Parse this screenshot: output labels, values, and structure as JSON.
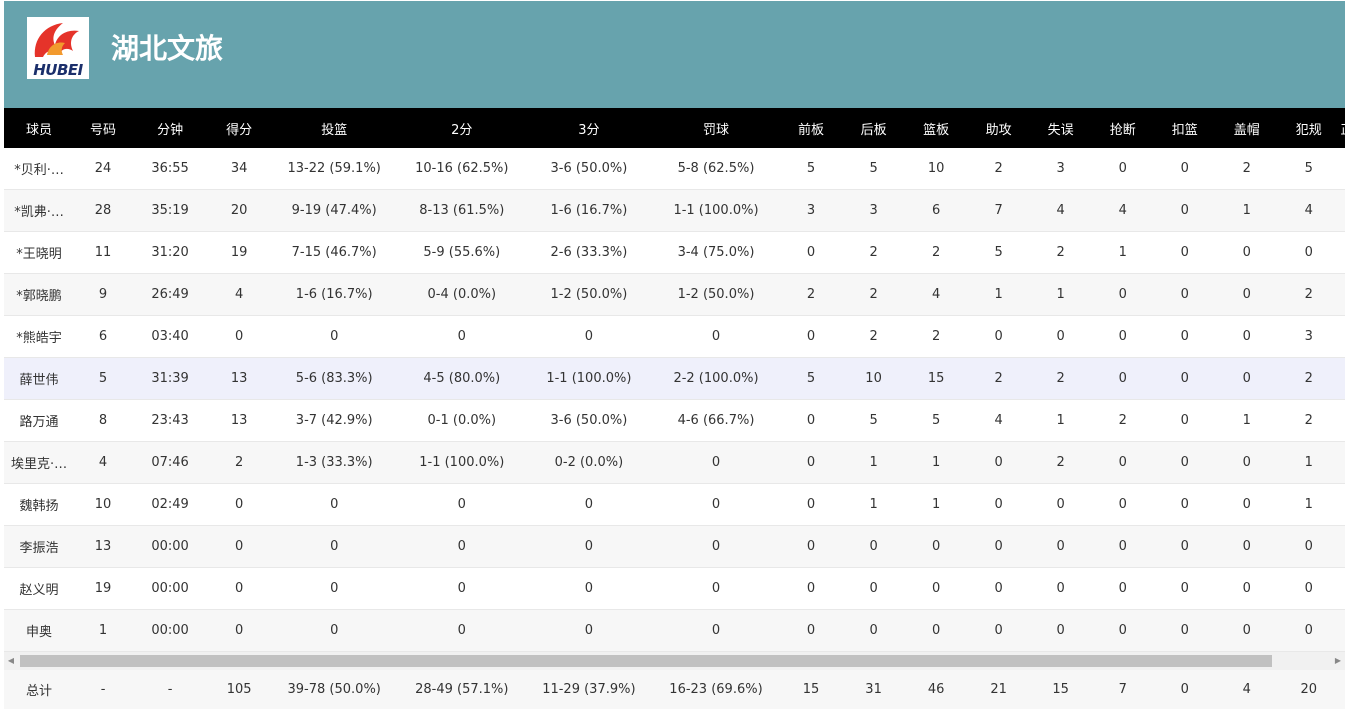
{
  "header": {
    "logo_text": "HUBEI",
    "team_name": "湖北文旅",
    "colors": {
      "banner": "#67a3ad",
      "logo_red": "#e5332a",
      "logo_blue": "#1b2f6b"
    }
  },
  "columns": [
    "球员",
    "号码",
    "分钟",
    "得分",
    "投篮",
    "2分",
    "3分",
    "罚球",
    "前板",
    "后板",
    "篮板",
    "助攻",
    "失误",
    "抢断",
    "扣篮",
    "盖帽",
    "犯规",
    "正"
  ],
  "rows": [
    [
      "*贝利·…",
      "24",
      "36:55",
      "34",
      "13-22 (59.1%)",
      "10-16 (62.5%)",
      "3-6 (50.0%)",
      "5-8 (62.5%)",
      "5",
      "5",
      "10",
      "2",
      "3",
      "0",
      "0",
      "2",
      "5",
      ""
    ],
    [
      "*凯弗·…",
      "28",
      "35:19",
      "20",
      "9-19 (47.4%)",
      "8-13 (61.5%)",
      "1-6 (16.7%)",
      "1-1 (100.0%)",
      "3",
      "3",
      "6",
      "7",
      "4",
      "4",
      "0",
      "1",
      "4",
      ""
    ],
    [
      "*王晓明",
      "11",
      "31:20",
      "19",
      "7-15 (46.7%)",
      "5-9 (55.6%)",
      "2-6 (33.3%)",
      "3-4 (75.0%)",
      "0",
      "2",
      "2",
      "5",
      "2",
      "1",
      "0",
      "0",
      "0",
      ""
    ],
    [
      "*郭晓鹏",
      "9",
      "26:49",
      "4",
      "1-6 (16.7%)",
      "0-4 (0.0%)",
      "1-2 (50.0%)",
      "1-2 (50.0%)",
      "2",
      "2",
      "4",
      "1",
      "1",
      "0",
      "0",
      "0",
      "2",
      ""
    ],
    [
      "*熊皓宇",
      "6",
      "03:40",
      "0",
      "0",
      "0",
      "0",
      "0",
      "0",
      "2",
      "2",
      "0",
      "0",
      "0",
      "0",
      "0",
      "3",
      ""
    ],
    [
      "薛世伟",
      "5",
      "31:39",
      "13",
      "5-6 (83.3%)",
      "4-5 (80.0%)",
      "1-1 (100.0%)",
      "2-2 (100.0%)",
      "5",
      "10",
      "15",
      "2",
      "2",
      "0",
      "0",
      "0",
      "2",
      ""
    ],
    [
      "路万通",
      "8",
      "23:43",
      "13",
      "3-7 (42.9%)",
      "0-1 (0.0%)",
      "3-6 (50.0%)",
      "4-6 (66.7%)",
      "0",
      "5",
      "5",
      "4",
      "1",
      "2",
      "0",
      "1",
      "2",
      ""
    ],
    [
      "埃里克·…",
      "4",
      "07:46",
      "2",
      "1-3 (33.3%)",
      "1-1 (100.0%)",
      "0-2 (0.0%)",
      "0",
      "0",
      "1",
      "1",
      "0",
      "2",
      "0",
      "0",
      "0",
      "1",
      ""
    ],
    [
      "魏韩扬",
      "10",
      "02:49",
      "0",
      "0",
      "0",
      "0",
      "0",
      "0",
      "1",
      "1",
      "0",
      "0",
      "0",
      "0",
      "0",
      "1",
      ""
    ],
    [
      "李振浩",
      "13",
      "00:00",
      "0",
      "0",
      "0",
      "0",
      "0",
      "0",
      "0",
      "0",
      "0",
      "0",
      "0",
      "0",
      "0",
      "0",
      ""
    ],
    [
      "赵义明",
      "19",
      "00:00",
      "0",
      "0",
      "0",
      "0",
      "0",
      "0",
      "0",
      "0",
      "0",
      "0",
      "0",
      "0",
      "0",
      "0",
      ""
    ],
    [
      "申奥",
      "1",
      "00:00",
      "0",
      "0",
      "0",
      "0",
      "0",
      "0",
      "0",
      "0",
      "0",
      "0",
      "0",
      "0",
      "0",
      "0",
      ""
    ]
  ],
  "highlight_row": 5,
  "totals": [
    "总计",
    "-",
    "-",
    "105",
    "39-78 (50.0%)",
    "28-49 (57.1%)",
    "11-29 (37.9%)",
    "16-23 (69.6%)",
    "15",
    "31",
    "46",
    "21",
    "15",
    "7",
    "0",
    "4",
    "20"
  ],
  "scrollbar": {
    "left_icon": "arrow-left-icon",
    "right_icon": "arrow-right-icon"
  }
}
